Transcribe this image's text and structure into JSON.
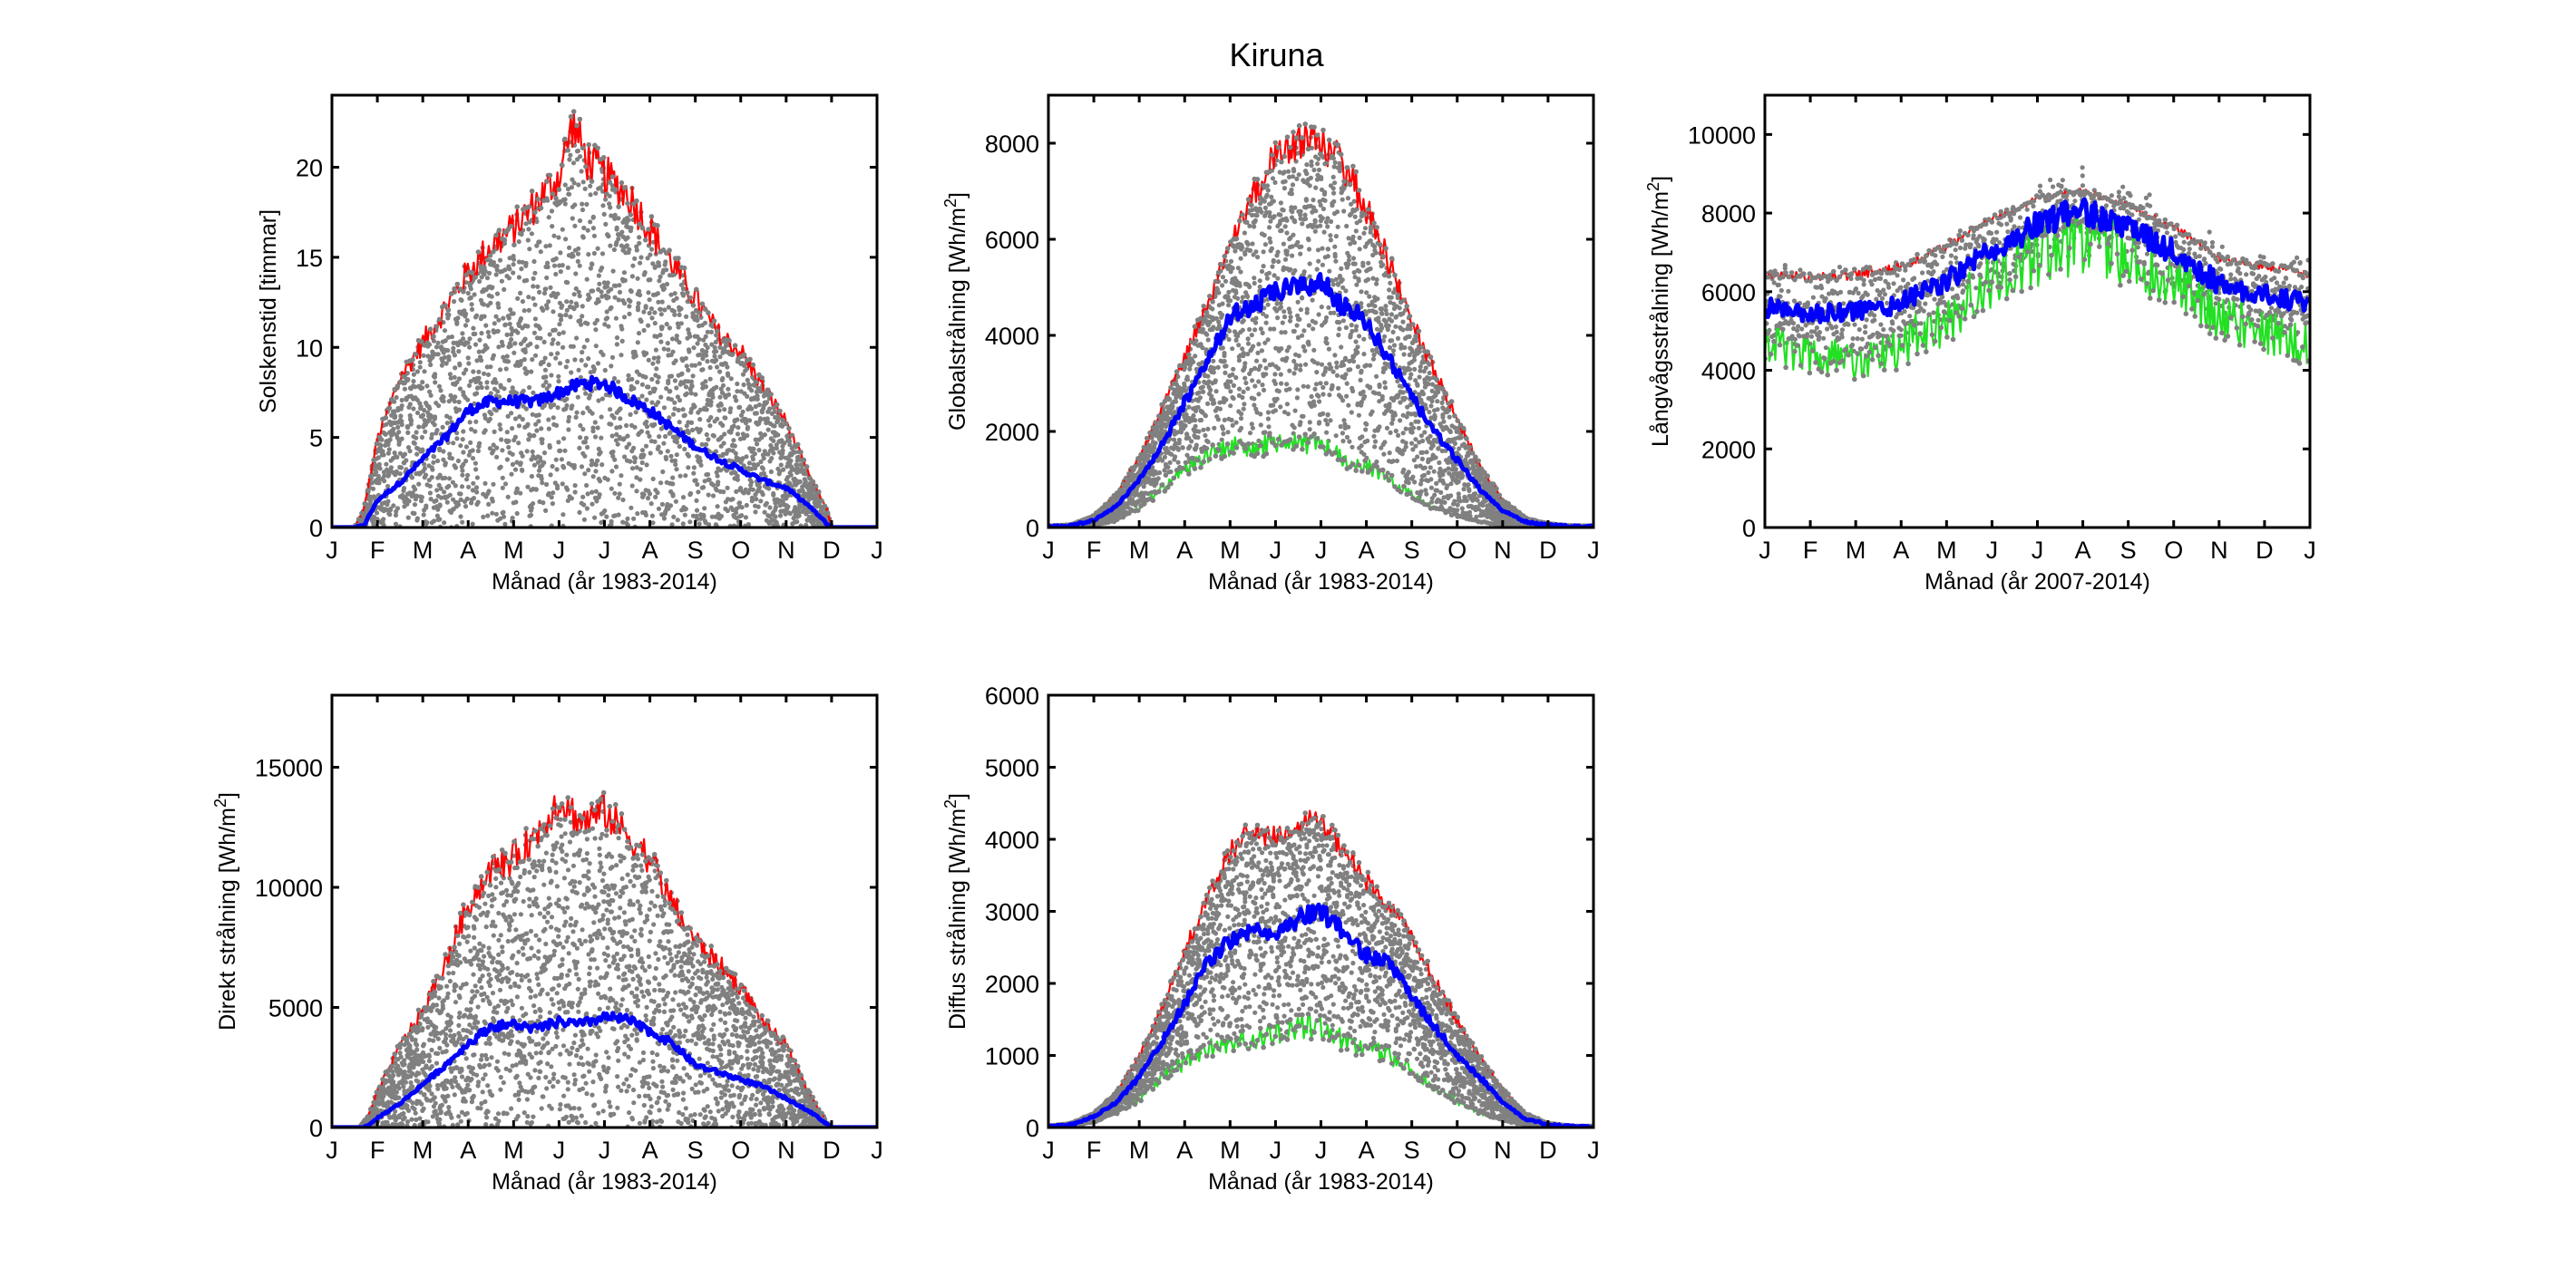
{
  "figure": {
    "title": "Kiruna"
  },
  "colors": {
    "scatter": "#808080",
    "max": "#ff0000",
    "mean": "#0000ff",
    "min": "#22e022",
    "axis": "#000000"
  },
  "chart_data": [
    {
      "type": "scatter",
      "id": "solskenstid",
      "title": "",
      "xlabel": "Månad (år 1983-2014)",
      "ylabel": "Solskenstid [timmar]",
      "ylabel_sup": "",
      "xticks": [
        "J",
        "F",
        "M",
        "A",
        "M",
        "J",
        "J",
        "A",
        "S",
        "O",
        "N",
        "D",
        "J"
      ],
      "yticks": [
        0,
        5,
        10,
        15,
        20
      ],
      "ylim": [
        0,
        24
      ],
      "x_unit": "month",
      "series": [
        {
          "name": "max",
          "x": [
            0,
            0.5,
            0.7,
            1,
            1.5,
            2,
            2.5,
            3,
            3.5,
            4,
            4.5,
            5,
            5.3,
            5.6,
            6,
            6.5,
            7,
            7.5,
            8,
            8.5,
            9,
            9.5,
            10,
            10.5,
            10.9,
            11,
            12
          ],
          "values": [
            0,
            0,
            1,
            5,
            8.5,
            10.5,
            12.5,
            14.5,
            16,
            17,
            18.5,
            20,
            23,
            21,
            20,
            19,
            17,
            15,
            13,
            11,
            10,
            8,
            6,
            3,
            1,
            0,
            0
          ]
        },
        {
          "name": "mean",
          "x": [
            0,
            0.5,
            0.7,
            1,
            1.5,
            2,
            2.5,
            3,
            3.5,
            4,
            4.5,
            5,
            5.5,
            6,
            6.5,
            7,
            7.5,
            8,
            8.5,
            9,
            9.5,
            10,
            10.5,
            10.9,
            11,
            12
          ],
          "values": [
            0,
            0,
            0.1,
            1.5,
            2.5,
            3.8,
            5,
            6.5,
            7,
            7,
            7,
            7.5,
            8,
            8,
            7.2,
            6.5,
            5.5,
            4.5,
            3.8,
            3.2,
            2.6,
            2.2,
            1.2,
            0.2,
            0,
            0
          ]
        },
        {
          "name": "min",
          "x": [
            0,
            12
          ],
          "values": [
            0,
            0
          ]
        }
      ]
    },
    {
      "type": "scatter",
      "id": "globalstralning",
      "xlabel": "Månad (år 1983-2014)",
      "ylabel": "Globalstrålning [Wh/m",
      "ylabel_sup": "2",
      "ylabel_end": "]",
      "xticks": [
        "J",
        "F",
        "M",
        "A",
        "M",
        "J",
        "J",
        "A",
        "S",
        "O",
        "N",
        "D",
        "J"
      ],
      "yticks": [
        0,
        2000,
        4000,
        6000,
        8000
      ],
      "ylim": [
        0,
        9000
      ],
      "series": [
        {
          "name": "max",
          "x": [
            0,
            0.5,
            1,
            1.5,
            2,
            2.5,
            3,
            3.5,
            4,
            4.5,
            5,
            5.5,
            6,
            6.5,
            7,
            7.5,
            8,
            8.5,
            9,
            9.5,
            10,
            10.5,
            11,
            11.5,
            12
          ],
          "values": [
            30,
            60,
            250,
            700,
            1500,
            2500,
            3600,
            4700,
            5900,
            7000,
            7900,
            8200,
            8150,
            7700,
            6800,
            5600,
            4400,
            3300,
            2300,
            1300,
            600,
            200,
            80,
            40,
            30
          ]
        },
        {
          "name": "mean",
          "x": [
            0,
            0.5,
            1,
            1.5,
            2,
            2.5,
            3,
            3.5,
            4,
            4.5,
            5,
            5.5,
            6,
            6.5,
            7,
            7.5,
            8,
            8.5,
            9,
            9.5,
            10,
            10.5,
            11,
            11.5,
            12
          ],
          "values": [
            20,
            40,
            150,
            450,
            1000,
            1700,
            2600,
            3500,
            4400,
            4600,
            4900,
            5000,
            5100,
            4600,
            4300,
            3500,
            2700,
            2000,
            1400,
            800,
            350,
            120,
            50,
            25,
            20
          ]
        },
        {
          "name": "min",
          "x": [
            0,
            0.5,
            1,
            1.5,
            2,
            2.5,
            3,
            3.5,
            4,
            4.5,
            5,
            5.5,
            6,
            6.5,
            7,
            7.5,
            8,
            8.5,
            9,
            9.5,
            10,
            10.5,
            11,
            11.5,
            12
          ],
          "values": [
            5,
            10,
            40,
            150,
            400,
            800,
            1200,
            1500,
            1700,
            1600,
            1800,
            1700,
            1800,
            1400,
            1300,
            1000,
            700,
            400,
            250,
            120,
            50,
            20,
            10,
            5,
            5
          ]
        }
      ]
    },
    {
      "type": "scatter",
      "id": "langvagsstralning",
      "xlabel": "Månad (år 2007-2014)",
      "ylabel": "Långvågsstrålning [Wh/m",
      "ylabel_sup": "2",
      "ylabel_end": "]",
      "xticks": [
        "J",
        "F",
        "M",
        "A",
        "M",
        "J",
        "J",
        "A",
        "S",
        "O",
        "N",
        "D",
        "J"
      ],
      "yticks": [
        0,
        2000,
        4000,
        6000,
        8000,
        10000
      ],
      "ylim": [
        0,
        11000
      ],
      "series": [
        {
          "name": "max",
          "x": [
            0,
            1,
            2,
            3,
            4,
            5,
            6,
            7,
            8,
            9,
            10,
            11,
            12
          ],
          "values": [
            6500,
            6400,
            6500,
            6700,
            7200,
            7900,
            8400,
            8600,
            8200,
            7700,
            6900,
            6700,
            6500
          ]
        },
        {
          "name": "mean",
          "x": [
            0,
            1,
            2,
            3,
            4,
            5,
            6,
            7,
            8,
            9,
            10,
            11,
            12
          ],
          "values": [
            5600,
            5400,
            5500,
            5700,
            6300,
            7000,
            7700,
            8100,
            7600,
            7000,
            6200,
            5900,
            5700
          ]
        },
        {
          "name": "min",
          "x": [
            0,
            1,
            2,
            3,
            4,
            5,
            6,
            7,
            8,
            9,
            10,
            11,
            12
          ],
          "values": [
            4700,
            4400,
            4300,
            4600,
            5300,
            6300,
            7000,
            7400,
            6900,
            6200,
            5300,
            5000,
            4700
          ]
        }
      ]
    },
    {
      "type": "scatter",
      "id": "direkt-stralning",
      "xlabel": "Månad (år 1983-2014)",
      "ylabel": "Direkt strålning [Wh/m",
      "ylabel_sup": "2",
      "ylabel_end": "]",
      "xticks": [
        "J",
        "F",
        "M",
        "A",
        "M",
        "J",
        "J",
        "A",
        "S",
        "O",
        "N",
        "D",
        "J"
      ],
      "yticks": [
        0,
        5000,
        10000,
        15000
      ],
      "ylim": [
        0,
        18000
      ],
      "series": [
        {
          "name": "max",
          "x": [
            0,
            0.6,
            0.8,
            1,
            1.5,
            2,
            2.5,
            3,
            3.5,
            4,
            4.5,
            5,
            5.5,
            6,
            6.5,
            7,
            7.5,
            8,
            8.5,
            9,
            9.5,
            10,
            10.5,
            10.9,
            11,
            12
          ],
          "values": [
            0,
            0,
            500,
            1500,
            3500,
            5000,
            7000,
            9500,
            11000,
            11500,
            12500,
            14000,
            13000,
            13500,
            12500,
            11500,
            9500,
            8000,
            7000,
            6000,
            4500,
            3500,
            1500,
            200,
            0,
            0
          ]
        },
        {
          "name": "mean",
          "x": [
            0,
            0.6,
            0.8,
            1,
            1.5,
            2,
            2.5,
            3,
            3.5,
            4,
            4.5,
            5,
            5.5,
            6,
            6.5,
            7,
            7.5,
            8,
            8.5,
            9,
            9.5,
            10,
            10.5,
            10.9,
            11,
            12
          ],
          "values": [
            0,
            0,
            50,
            400,
            1000,
            1800,
            2600,
            3500,
            4200,
            4300,
            4100,
            4400,
            4300,
            4600,
            4500,
            4000,
            3500,
            2600,
            2300,
            2000,
            1700,
            1200,
            700,
            150,
            0,
            0
          ]
        },
        {
          "name": "min",
          "x": [
            0,
            12
          ],
          "values": [
            0,
            0
          ]
        }
      ]
    },
    {
      "type": "scatter",
      "id": "diffus-stralning",
      "xlabel": "Månad (år 1983-2014)",
      "ylabel": "Diffus strålning [Wh/m",
      "ylabel_sup": "2",
      "ylabel_end": "]",
      "xticks": [
        "J",
        "F",
        "M",
        "A",
        "M",
        "J",
        "J",
        "A",
        "S",
        "O",
        "N",
        "D",
        "J"
      ],
      "yticks": [
        0,
        1000,
        2000,
        3000,
        4000,
        5000,
        6000
      ],
      "ylim": [
        0,
        6000
      ],
      "series": [
        {
          "name": "max",
          "x": [
            0,
            0.5,
            1,
            1.5,
            2,
            2.5,
            3,
            3.5,
            4,
            4.5,
            5,
            5.5,
            6,
            6.5,
            7,
            7.5,
            8,
            8.5,
            9,
            9.5,
            10,
            10.5,
            11,
            11.5,
            12
          ],
          "values": [
            20,
            60,
            200,
            500,
            1000,
            1700,
            2500,
            3200,
            3900,
            4200,
            4100,
            4300,
            4300,
            3900,
            3500,
            3100,
            2700,
            2100,
            1500,
            1000,
            550,
            200,
            60,
            20,
            20
          ]
        },
        {
          "name": "mean",
          "x": [
            0,
            0.5,
            1,
            1.5,
            2,
            2.5,
            3,
            3.5,
            4,
            4.5,
            5,
            5.5,
            6,
            6.5,
            7,
            7.5,
            8,
            8.5,
            9,
            9.5,
            10,
            10.5,
            11,
            11.5,
            12
          ],
          "values": [
            10,
            40,
            150,
            350,
            700,
            1200,
            1700,
            2300,
            2600,
            2700,
            2700,
            2900,
            3000,
            2700,
            2400,
            2300,
            1800,
            1400,
            1000,
            700,
            350,
            120,
            40,
            15,
            10
          ]
        },
        {
          "name": "min",
          "x": [
            0,
            0.5,
            1,
            1.5,
            2,
            2.5,
            3,
            3.5,
            4,
            4.5,
            5,
            5.5,
            6,
            6.5,
            7,
            7.5,
            8,
            8.5,
            9,
            9.5,
            10,
            10.5,
            11,
            11.5,
            12
          ],
          "values": [
            5,
            20,
            80,
            200,
            400,
            700,
            900,
            1100,
            1200,
            1200,
            1300,
            1400,
            1400,
            1200,
            1100,
            1000,
            800,
            550,
            350,
            200,
            100,
            40,
            10,
            5,
            5
          ]
        }
      ]
    }
  ]
}
